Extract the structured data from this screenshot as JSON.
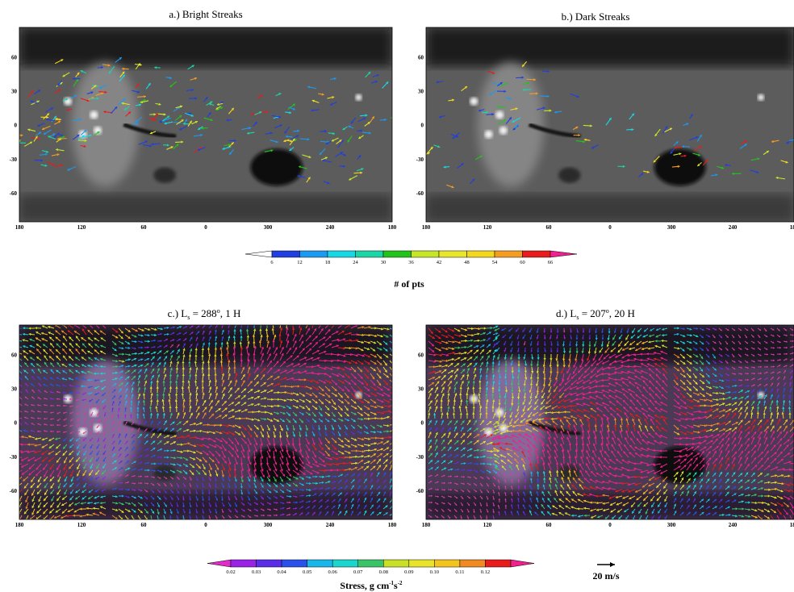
{
  "figure": {
    "panels": [
      {
        "title": "a.) Bright Streaks",
        "kind": "streaks",
        "seed": 11,
        "count": 230
      },
      {
        "title": "b.) Dark Streaks",
        "kind": "streaks",
        "seed": 29,
        "count": 95
      },
      {
        "title_prefix": "c.) L",
        "title_sub": "s",
        "title_suffix": " = 288",
        "title_sup": "o",
        "title_tail": ", 1 H",
        "kind": "stress",
        "seed": 5
      },
      {
        "title_prefix": "d.) L",
        "title_sub": "s",
        "title_suffix": " = 207",
        "title_sup": "o",
        "title_tail": ", 20 H",
        "kind": "stress",
        "seed": 17
      }
    ],
    "x_ticks": [
      "180",
      "120",
      "60",
      "0",
      "300",
      "240",
      "180"
    ],
    "y_ticks": [
      "60",
      "30",
      "0",
      "-30",
      "-60"
    ],
    "colorbar_pts": {
      "label": "# of pts",
      "ticks": [
        "6",
        "12",
        "18",
        "24",
        "30",
        "36",
        "42",
        "48",
        "54",
        "60",
        "66"
      ],
      "colors": [
        "#1f3fe0",
        "#1a9af0",
        "#19d8e6",
        "#1ad6a6",
        "#22c41c",
        "#c8e628",
        "#e8e62a",
        "#f4d81e",
        "#f59d22",
        "#e81c1c"
      ]
    },
    "colorbar_stress": {
      "label_main": "Stress, g cm",
      "label_sup1": "-1",
      "label_mid": "s",
      "label_sup2": "-2",
      "ticks": [
        "0.02",
        "0.03",
        "0.04",
        "0.05",
        "0.06",
        "0.07",
        "0.08",
        "0.09",
        "0.10",
        "0.11",
        "0.12"
      ],
      "colors": [
        "#9a22e6",
        "#5a2ee8",
        "#2a52ea",
        "#19b6ea",
        "#1ad6cc",
        "#3ac46a",
        "#c8e028",
        "#e8e42a",
        "#f4c41e",
        "#f08a22",
        "#e81c1c"
      ]
    },
    "scale_arrow_label": "20 m/s"
  }
}
